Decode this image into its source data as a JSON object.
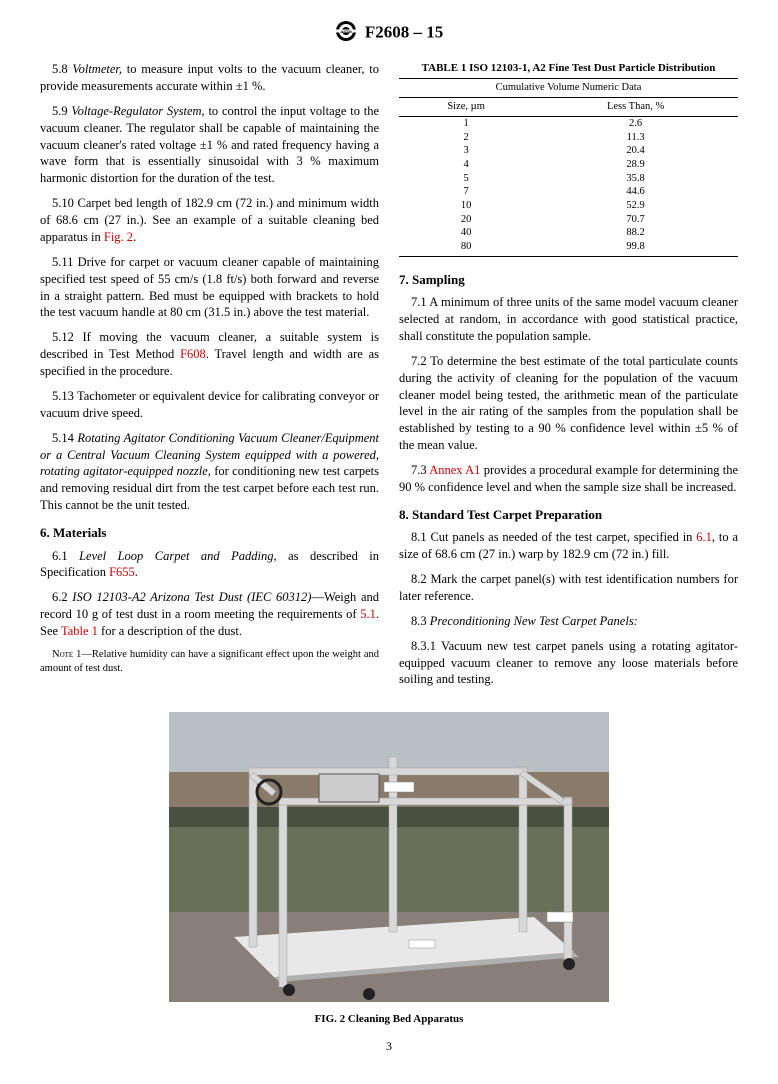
{
  "header": {
    "designation": "F2608 – 15"
  },
  "left_column": {
    "p58": {
      "num": "5.8",
      "term": "Voltmeter,",
      "text": " to measure input volts to the vacuum cleaner, to provide measurements accurate within ±1 %."
    },
    "p59": {
      "num": "5.9",
      "term": "Voltage-Regulator System,",
      "text": " to control the input voltage to the vacuum cleaner. The regulator shall be capable of maintaining the vacuum cleaner's rated voltage ±1 % and rated frequency having a wave form that is essentially sinusoidal with 3 % maximum harmonic distortion for the duration of the test."
    },
    "p510": {
      "num": "5.10",
      "text": " Carpet bed length of 182.9 cm (72 in.) and minimum width of 68.6 cm (27 in.). See an example of a suitable cleaning bed apparatus in ",
      "link": "Fig. 2",
      "after": "."
    },
    "p511": {
      "num": "5.11",
      "text": " Drive for carpet or vacuum cleaner capable of maintaining specified test speed of 55 cm/s (1.8 ft/s) both forward and reverse in a straight pattern. Bed must be equipped with brackets to hold the test vacuum handle at 80 cm (31.5 in.) above the test material."
    },
    "p512": {
      "num": "5.12",
      "text": " If moving the vacuum cleaner, a suitable system is described in Test Method ",
      "link": "F608",
      "after": ". Travel length and width are as specified in the procedure."
    },
    "p513": {
      "num": "5.13",
      "text": " Tachometer or equivalent device for calibrating conveyor or vacuum drive speed."
    },
    "p514": {
      "num": "5.14",
      "term": "Rotating Agitator Conditioning Vacuum Cleaner/Equipment or a Central Vacuum Cleaning System equipped with a powered, rotating agitator-equipped nozzle,",
      "text": " for conditioning new test carpets and removing residual dirt from the test carpet before each test run. This cannot be the unit tested."
    },
    "s6": {
      "title": "6. Materials"
    },
    "p61": {
      "num": "6.1",
      "term": "Level Loop Carpet and Padding,",
      "text": " as described in Specification ",
      "link": "F655",
      "after": "."
    },
    "p62": {
      "num": "6.2",
      "term": "ISO 12103-A2 Arizona Test Dust (IEC 60312)",
      "text": "—Weigh and record 10 g of test dust in a room meeting the requirements of ",
      "link1": "5.1",
      "mid": ". See ",
      "link2": "Table 1",
      "after": " for a description of the dust."
    },
    "note1": {
      "label": "Note 1",
      "text": "—Relative humidity can have a significant effect upon the weight and amount of test dust."
    }
  },
  "right_column": {
    "table": {
      "title": "TABLE 1 ISO 12103-1, A2 Fine Test Dust Particle Distribution",
      "subheader": "Cumulative Volume Numeric Data",
      "col1": "Size, µm",
      "col2": "Less Than, %",
      "rows": [
        {
          "size": "1",
          "pct": "2.6"
        },
        {
          "size": "2",
          "pct": "11.3"
        },
        {
          "size": "3",
          "pct": "20.4"
        },
        {
          "size": "4",
          "pct": "28.9"
        },
        {
          "size": "5",
          "pct": "35.8"
        },
        {
          "size": "7",
          "pct": "44.6"
        },
        {
          "size": "10",
          "pct": "52.9"
        },
        {
          "size": "20",
          "pct": "70.7"
        },
        {
          "size": "40",
          "pct": "88.2"
        },
        {
          "size": "80",
          "pct": "99.8"
        }
      ]
    },
    "s7": {
      "title": "7. Sampling"
    },
    "p71": {
      "num": "7.1",
      "text": " A minimum of three units of the same model vacuum cleaner selected at random, in accordance with good statistical practice, shall constitute the population sample."
    },
    "p72": {
      "num": "7.2",
      "text": " To determine the best estimate of the total particulate counts during the activity of cleaning for the population of the vacuum cleaner model being tested, the arithmetic mean of the particulate level in the air rating of the samples from the population shall be established by testing to a 90 % confidence level within ±5 % of the mean value."
    },
    "p73": {
      "num": "7.3",
      "link": "Annex A1",
      "text": " provides a procedural example for determining the 90 % confidence level and when the sample size shall be increased."
    },
    "s8": {
      "title": "8. Standard Test Carpet Preparation"
    },
    "p81": {
      "num": "8.1",
      "text": " Cut panels as needed of the test carpet, specified in ",
      "link": "6.1",
      "after": ", to a size of 68.6 cm (27 in.) warp by 182.9 cm (72 in.) fill."
    },
    "p82": {
      "num": "8.2",
      "text": " Mark the carpet panel(s) with test identification numbers for later reference."
    },
    "p83": {
      "num": "8.3",
      "term": "Preconditioning New Test Carpet Panels:"
    },
    "p831": {
      "num": "8.3.1",
      "text": " Vacuum new test carpet panels using a rotating agitator-equipped vacuum cleaner to remove any loose materials before soiling and testing."
    }
  },
  "figure": {
    "caption": "FIG. 2 Cleaning Bed Apparatus",
    "colors": {
      "sky": "#b8c0c4",
      "grass": "#6a7058",
      "ground": "#888078",
      "frame": "#d8d8d8",
      "frame_dark": "#a0a0a0",
      "bed": "#e8e8e8",
      "bed_shadow": "#b0b0b0",
      "building": "#8a7a6a",
      "trees": "#4a5040"
    }
  },
  "page_number": "3"
}
